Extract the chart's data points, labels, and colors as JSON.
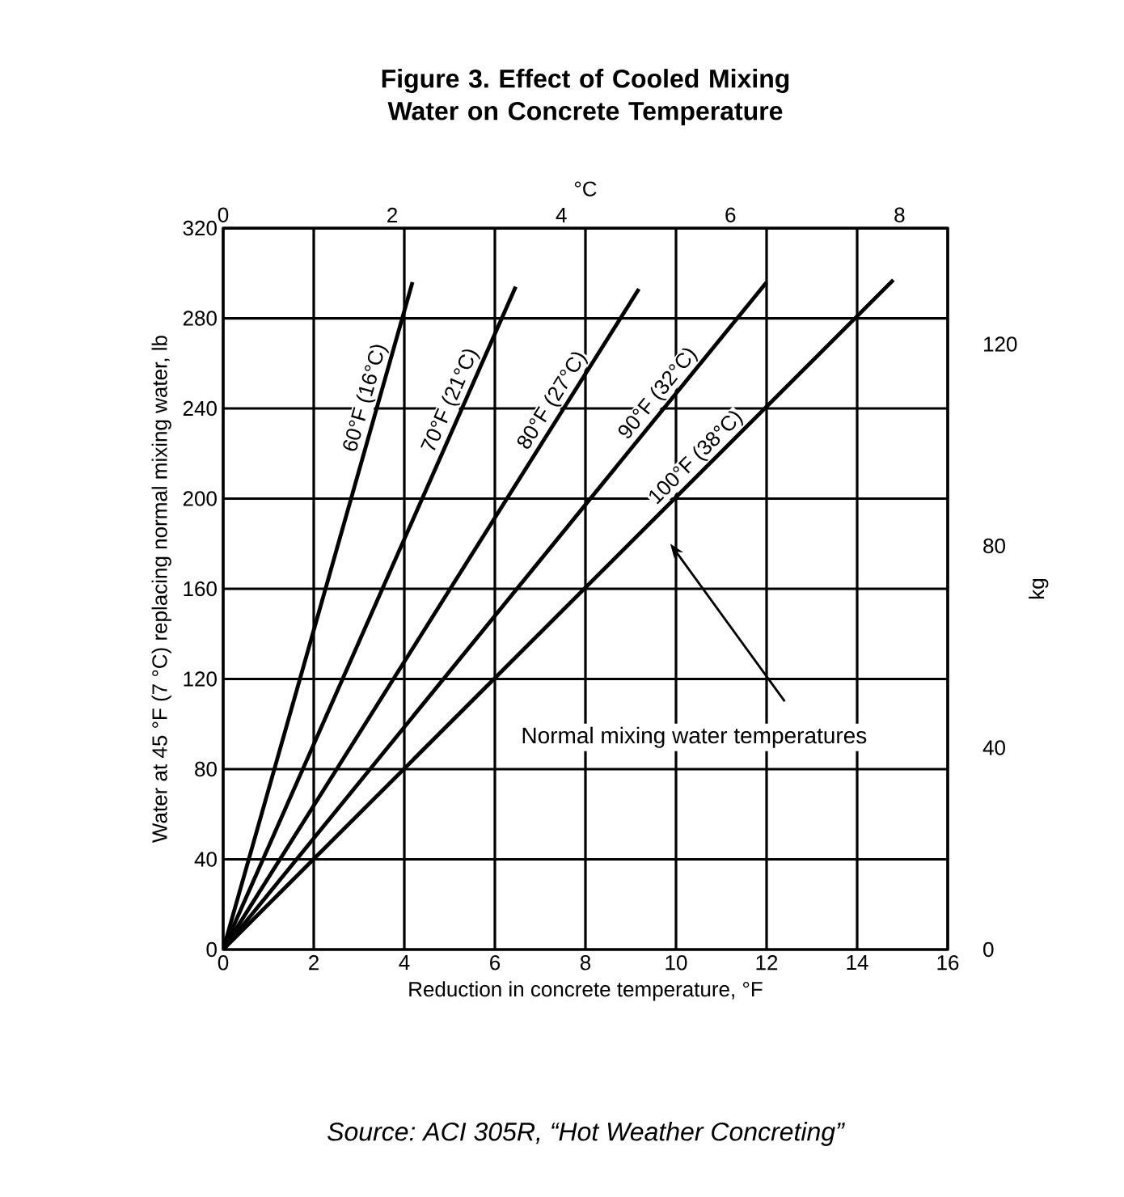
{
  "chart_data": {
    "type": "line",
    "title": "Figure 3. Effect of Cooled Mixing Water on Concrete Temperature",
    "xlabel": "Reduction in concrete temperature, °F",
    "ylabel": "Water at 45 °F (7 °C) replacing normal mixing water, lb",
    "x2label": "°C",
    "y2label": "kg",
    "xlim": [
      0,
      16
    ],
    "xticks": [
      0,
      2,
      4,
      6,
      8,
      10,
      12,
      14,
      16
    ],
    "ylim": [
      0,
      320
    ],
    "yticks": [
      0,
      40,
      80,
      120,
      160,
      200,
      240,
      280,
      320
    ],
    "x2lim": [
      0,
      8.57
    ],
    "x2ticks": [
      0,
      2,
      4,
      6,
      8
    ],
    "y2lim": [
      0,
      143
    ],
    "y2ticks": [
      0,
      40,
      80,
      120
    ],
    "grid": true,
    "legend": false,
    "marker": "none",
    "line_style": "solid",
    "series": [
      {
        "name": "60°F (16°C)",
        "color": "#000000",
        "x": [
          0,
          4.18
        ],
        "values": [
          0,
          296
        ]
      },
      {
        "name": "70°F (21°C)",
        "color": "#000000",
        "x": [
          0,
          6.46
        ],
        "values": [
          0,
          294
        ]
      },
      {
        "name": "80°F (27°C)",
        "color": "#000000",
        "x": [
          0,
          9.18
        ],
        "values": [
          0,
          293
        ]
      },
      {
        "name": "90°F (32°C)",
        "color": "#000000",
        "x": [
          0,
          12.0
        ],
        "values": [
          0,
          296
        ]
      },
      {
        "name": "100°F (38°C)",
        "color": "#000000",
        "x": [
          0,
          14.8
        ],
        "values": [
          0,
          297
        ]
      }
    ],
    "annotations": [
      "Normal mixing water temperatures",
      "Source: ACI 305R, “Hot Weather Concreting”"
    ]
  }
}
